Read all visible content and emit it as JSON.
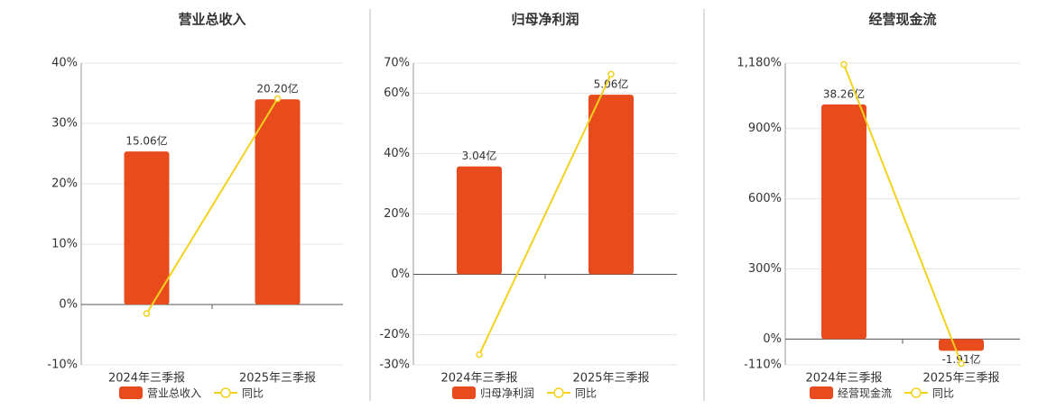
{
  "chart_data": [
    {
      "type": "bar",
      "title": "营业总收入",
      "categories": [
        "2024年三季报",
        "2025年三季报"
      ],
      "series": [
        {
          "name": "营业总收入",
          "type": "bar",
          "color": "#e84c1c",
          "values": [
            15.06,
            20.2
          ],
          "value_labels": [
            "15.06亿",
            "20.20亿"
          ]
        },
        {
          "name": "同比",
          "type": "line",
          "color": "#f2d21d",
          "values": [
            -1.5,
            34.1
          ]
        }
      ],
      "ylim": [
        -10,
        40
      ],
      "yticks": [
        {
          "value": -10,
          "label": "-10%"
        },
        {
          "value": 0,
          "label": "0%"
        },
        {
          "value": 10,
          "label": "10%"
        },
        {
          "value": 20,
          "label": "20%"
        },
        {
          "value": 30,
          "label": "30%"
        },
        {
          "value": 40,
          "label": "40%"
        }
      ],
      "grid": true
    },
    {
      "type": "bar",
      "title": "归母净利润",
      "categories": [
        "2024年三季报",
        "2025年三季报"
      ],
      "series": [
        {
          "name": "归母净利润",
          "type": "bar",
          "color": "#e84c1c",
          "values": [
            3.04,
            5.06
          ],
          "value_labels": [
            "3.04亿",
            "5.06亿"
          ]
        },
        {
          "name": "同比",
          "type": "line",
          "color": "#f2d21d",
          "values": [
            -26.6,
            66.3
          ]
        }
      ],
      "ylim": [
        -30,
        70
      ],
      "yticks": [
        {
          "value": -30,
          "label": "-30%"
        },
        {
          "value": -20,
          "label": "-20%"
        },
        {
          "value": 0,
          "label": "0%"
        },
        {
          "value": 20,
          "label": "20%"
        },
        {
          "value": 40,
          "label": "40%"
        },
        {
          "value": 60,
          "label": "60%"
        },
        {
          "value": 70,
          "label": "70%"
        }
      ],
      "grid": true
    },
    {
      "type": "bar",
      "title": "经营现金流",
      "categories": [
        "2024年三季报",
        "2025年三季报"
      ],
      "series": [
        {
          "name": "经营现金流",
          "type": "bar",
          "color": "#e84c1c",
          "values": [
            38.26,
            -1.91
          ],
          "value_labels": [
            "38.26亿",
            "-1.91亿"
          ]
        },
        {
          "name": "同比",
          "type": "line",
          "color": "#f2d21d",
          "values": [
            1174,
            -104
          ]
        }
      ],
      "ylim": [
        -110,
        1180
      ],
      "yticks": [
        {
          "value": -110,
          "label": "-110%"
        },
        {
          "value": 0,
          "label": "0%"
        },
        {
          "value": 300,
          "label": "300%"
        },
        {
          "value": 600,
          "label": "600%"
        },
        {
          "value": 900,
          "label": "900%"
        },
        {
          "value": 1180,
          "label": "1,180%"
        }
      ],
      "grid": true
    }
  ]
}
